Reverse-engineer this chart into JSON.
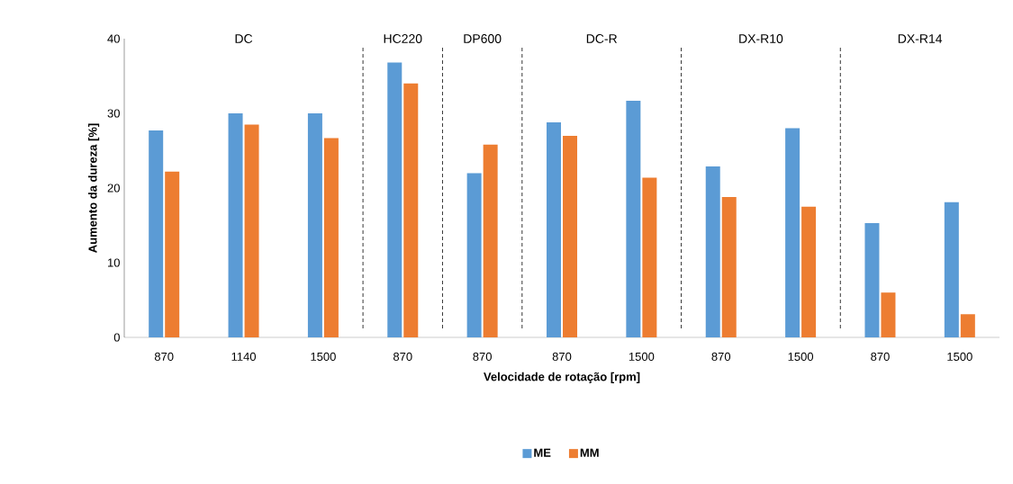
{
  "chart_data": {
    "type": "bar",
    "xlabel": "Velocidade de rotação [rpm]",
    "ylabel": "Aumento da dureza [%]",
    "categories": [
      "870",
      "1140",
      "1500",
      "870",
      "870",
      "870",
      "1500",
      "870",
      "1500",
      "870",
      "1500"
    ],
    "series": [
      {
        "name": "ME",
        "color": "#5b9bd5",
        "values": [
          27.7,
          30.0,
          30.0,
          36.8,
          22.0,
          28.8,
          31.7,
          22.9,
          28.0,
          15.3,
          18.1
        ]
      },
      {
        "name": "MM",
        "color": "#ed7d31",
        "values": [
          22.2,
          28.5,
          26.7,
          34.0,
          25.8,
          27.0,
          21.4,
          18.8,
          17.5,
          6.0,
          3.1
        ]
      }
    ],
    "ylim": [
      0,
      40
    ],
    "yticks": [
      0,
      10,
      20,
      30,
      40
    ],
    "annotations": [
      "DC",
      "HC220",
      "DP600",
      "DC-R",
      "DX-R10",
      "DX-R14"
    ],
    "legend": "bottom"
  }
}
